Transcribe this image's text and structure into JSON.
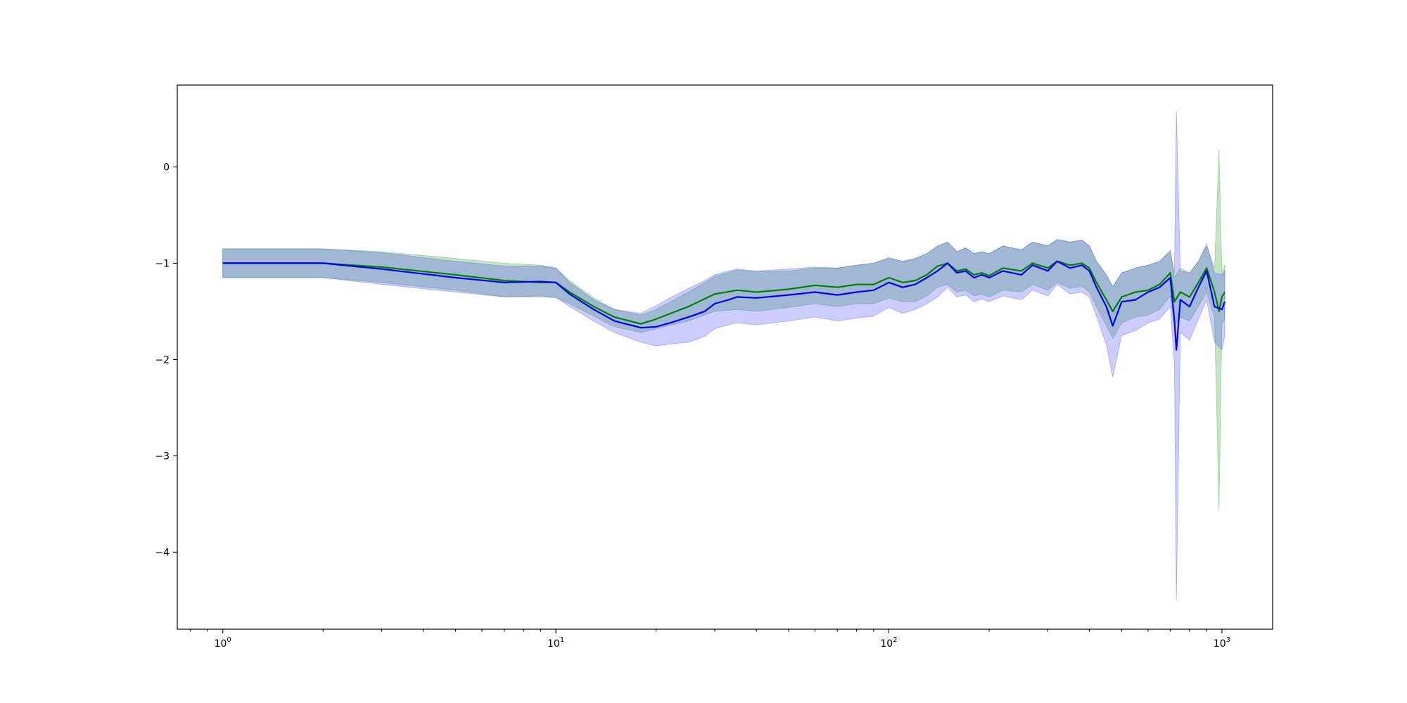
{
  "chart_data": {
    "type": "line",
    "title": "",
    "xlabel": "",
    "ylabel": "",
    "xscale": "log",
    "xlim": [
      0.73,
      1420
    ],
    "ylim": [
      -4.8,
      0.85
    ],
    "grid": false,
    "legend": "none",
    "x_ticks": [
      {
        "value": 1,
        "base": "10",
        "exp": "0"
      },
      {
        "value": 10,
        "base": "10",
        "exp": "1"
      },
      {
        "value": 100,
        "base": "10",
        "exp": "2"
      },
      {
        "value": 1000,
        "base": "10",
        "exp": "3"
      }
    ],
    "y_ticks": [
      {
        "value": 0,
        "label": "0"
      },
      {
        "value": -1,
        "label": "−1"
      },
      {
        "value": -2,
        "label": "−2"
      },
      {
        "value": -3,
        "label": "−3"
      },
      {
        "value": -4,
        "label": "−4"
      }
    ],
    "series": [
      {
        "color": "#008000",
        "band_color": "#2ca02c",
        "band_alpha": 0.28,
        "x": [
          1,
          2,
          3,
          5,
          7,
          9,
          10,
          11,
          13,
          15,
          18,
          20,
          25,
          30,
          35,
          40,
          50,
          60,
          70,
          80,
          90,
          100,
          110,
          120,
          130,
          140,
          150,
          160,
          170,
          180,
          190,
          200,
          220,
          250,
          270,
          300,
          320,
          350,
          380,
          400,
          420,
          450,
          470,
          500,
          550,
          600,
          650,
          700,
          720,
          750,
          800,
          850,
          900,
          950,
          980,
          1000,
          1020
        ],
        "y": [
          -1.0,
          -1.0,
          -1.04,
          -1.12,
          -1.18,
          -1.2,
          -1.2,
          -1.3,
          -1.45,
          -1.56,
          -1.63,
          -1.58,
          -1.45,
          -1.32,
          -1.28,
          -1.3,
          -1.27,
          -1.23,
          -1.25,
          -1.22,
          -1.22,
          -1.15,
          -1.2,
          -1.18,
          -1.12,
          -1.03,
          -1.0,
          -1.08,
          -1.06,
          -1.12,
          -1.1,
          -1.13,
          -1.05,
          -1.08,
          -1.0,
          -1.05,
          -0.98,
          -1.02,
          -1.0,
          -1.05,
          -1.2,
          -1.38,
          -1.5,
          -1.35,
          -1.3,
          -1.28,
          -1.22,
          -1.1,
          -1.4,
          -1.3,
          -1.35,
          -1.2,
          -1.05,
          -1.3,
          -1.5,
          -1.35,
          -1.3
        ],
        "upper": [
          -0.85,
          -0.85,
          -0.88,
          -0.95,
          -1.0,
          -1.02,
          -1.05,
          -1.18,
          -1.36,
          -1.48,
          -1.54,
          -1.48,
          -1.3,
          -1.14,
          -1.07,
          -1.09,
          -1.08,
          -1.05,
          -1.05,
          -1.02,
          -1.0,
          -0.95,
          -0.98,
          -0.95,
          -0.9,
          -0.82,
          -0.78,
          -0.88,
          -0.84,
          -0.9,
          -0.88,
          -0.9,
          -0.82,
          -0.86,
          -0.78,
          -0.82,
          -0.76,
          -0.78,
          -0.76,
          -0.82,
          -0.98,
          -1.12,
          -1.24,
          -1.1,
          -1.05,
          -1.02,
          -0.98,
          -0.86,
          -1.15,
          -1.05,
          -1.1,
          -0.98,
          -0.82,
          -1.05,
          0.18,
          -1.1,
          -1.02
        ],
        "lower": [
          -1.15,
          -1.15,
          -1.2,
          -1.28,
          -1.35,
          -1.35,
          -1.36,
          -1.42,
          -1.55,
          -1.66,
          -1.72,
          -1.68,
          -1.6,
          -1.5,
          -1.48,
          -1.5,
          -1.46,
          -1.42,
          -1.45,
          -1.42,
          -1.42,
          -1.36,
          -1.4,
          -1.4,
          -1.34,
          -1.25,
          -1.22,
          -1.3,
          -1.28,
          -1.34,
          -1.32,
          -1.35,
          -1.28,
          -1.3,
          -1.22,
          -1.28,
          -1.2,
          -1.26,
          -1.24,
          -1.3,
          -1.45,
          -1.65,
          -1.78,
          -1.62,
          -1.56,
          -1.54,
          -1.48,
          -1.34,
          -1.65,
          -1.56,
          -1.6,
          -1.45,
          -1.3,
          -1.56,
          -3.58,
          -1.62,
          -1.58
        ]
      },
      {
        "color": "#0000ee",
        "band_color": "#3333ff",
        "band_alpha": 0.25,
        "x": [
          1,
          2,
          3,
          5,
          7,
          9,
          10,
          11,
          13,
          15,
          18,
          20,
          22,
          25,
          28,
          30,
          33,
          35,
          40,
          50,
          60,
          70,
          80,
          90,
          100,
          110,
          120,
          130,
          140,
          150,
          160,
          170,
          180,
          190,
          200,
          220,
          250,
          270,
          300,
          320,
          350,
          380,
          400,
          420,
          450,
          470,
          500,
          550,
          600,
          650,
          700,
          720,
          730,
          750,
          800,
          850,
          900,
          950,
          1000,
          1020
        ],
        "y": [
          -1.0,
          -1.0,
          -1.06,
          -1.15,
          -1.2,
          -1.19,
          -1.2,
          -1.32,
          -1.48,
          -1.6,
          -1.67,
          -1.66,
          -1.62,
          -1.56,
          -1.5,
          -1.42,
          -1.38,
          -1.35,
          -1.36,
          -1.33,
          -1.3,
          -1.33,
          -1.3,
          -1.28,
          -1.2,
          -1.25,
          -1.22,
          -1.15,
          -1.08,
          -1.0,
          -1.1,
          -1.08,
          -1.15,
          -1.12,
          -1.15,
          -1.08,
          -1.12,
          -1.02,
          -1.08,
          -0.98,
          -1.05,
          -1.02,
          -1.08,
          -1.25,
          -1.45,
          -1.65,
          -1.4,
          -1.38,
          -1.3,
          -1.25,
          -1.15,
          -1.6,
          -1.9,
          -1.38,
          -1.45,
          -1.25,
          -1.08,
          -1.45,
          -1.48,
          -1.4
        ],
        "upper": [
          -0.85,
          -0.85,
          -0.89,
          -0.98,
          -1.03,
          -1.03,
          -1.05,
          -1.2,
          -1.38,
          -1.48,
          -1.52,
          -1.44,
          -1.36,
          -1.26,
          -1.18,
          -1.12,
          -1.08,
          -1.06,
          -1.08,
          -1.06,
          -1.04,
          -1.05,
          -1.02,
          -1.0,
          -0.94,
          -0.98,
          -0.95,
          -0.9,
          -0.82,
          -0.78,
          -0.88,
          -0.84,
          -0.9,
          -0.88,
          -0.9,
          -0.82,
          -0.86,
          -0.78,
          -0.82,
          -0.75,
          -0.78,
          -0.76,
          -0.82,
          -0.98,
          -1.12,
          -1.25,
          -1.1,
          -1.05,
          -1.02,
          -0.98,
          -0.88,
          -1.1,
          0.58,
          -1.08,
          -1.1,
          -0.98,
          -0.8,
          -1.1,
          -1.12,
          -1.08
        ],
        "lower": [
          -1.15,
          -1.15,
          -1.22,
          -1.3,
          -1.35,
          -1.34,
          -1.35,
          -1.45,
          -1.6,
          -1.72,
          -1.82,
          -1.86,
          -1.84,
          -1.82,
          -1.76,
          -1.68,
          -1.64,
          -1.62,
          -1.64,
          -1.6,
          -1.56,
          -1.6,
          -1.57,
          -1.55,
          -1.46,
          -1.52,
          -1.48,
          -1.42,
          -1.35,
          -1.25,
          -1.35,
          -1.33,
          -1.4,
          -1.37,
          -1.4,
          -1.34,
          -1.38,
          -1.28,
          -1.34,
          -1.22,
          -1.32,
          -1.3,
          -1.35,
          -1.55,
          -1.85,
          -2.18,
          -1.75,
          -1.7,
          -1.62,
          -1.58,
          -1.45,
          -2.05,
          -4.5,
          -1.72,
          -1.8,
          -1.58,
          -1.38,
          -1.82,
          -1.9,
          -1.75
        ]
      }
    ]
  }
}
